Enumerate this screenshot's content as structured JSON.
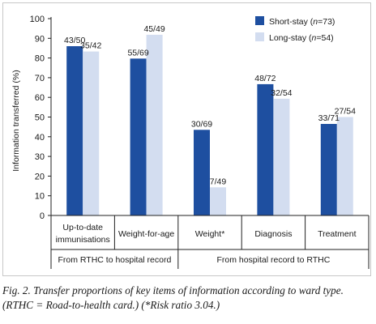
{
  "chart_data": {
    "type": "bar",
    "ylabel": "Information transferred (%)",
    "ylim": [
      0,
      100
    ],
    "yticks": [
      0,
      10,
      20,
      30,
      40,
      50,
      60,
      70,
      80,
      90,
      100
    ],
    "grid": false,
    "legend_position": "top-right",
    "categories": [
      "Up-to-date immunisations",
      "Weight-for-age",
      "Weight*",
      "Diagnosis",
      "Treatment"
    ],
    "category_lines": [
      [
        "Up-to-date",
        "immunisations"
      ],
      [
        "Weight-for-age"
      ],
      [
        "Weight*"
      ],
      [
        "Diagnosis"
      ],
      [
        "Treatment"
      ]
    ],
    "groups": [
      {
        "label": "From RTHC to hospital record",
        "categories": [
          "Up-to-date immunisations",
          "Weight-for-age"
        ]
      },
      {
        "label": "From hospital record to RTHC",
        "categories": [
          "Weight*",
          "Diagnosis",
          "Treatment"
        ]
      }
    ],
    "series": [
      {
        "name": "Short-stay",
        "legend_prefix": "Short-stay (",
        "legend_n": "n",
        "legend_suffix": "=73)",
        "color": "#1e4fa0",
        "values": [
          86,
          79.7,
          43.5,
          66.7,
          46.5
        ],
        "labels": [
          "43/50",
          "55/69",
          "30/69",
          "48/72",
          "33/71"
        ]
      },
      {
        "name": "Long-stay",
        "legend_prefix": "Long-stay (",
        "legend_n": "n",
        "legend_suffix": "=54)",
        "color": "#d3ddf0",
        "values": [
          83.3,
          91.8,
          14.3,
          59.3,
          50
        ],
        "labels": [
          "35/42",
          "45/49",
          "7/49",
          "32/54",
          "27/54"
        ]
      }
    ]
  },
  "caption": {
    "line1": "Fig. 2. Transfer proportions of key items of information according to ward type.",
    "line2": "(RTHC = Road-to-health card.) (*Risk ratio  3.04.)"
  }
}
